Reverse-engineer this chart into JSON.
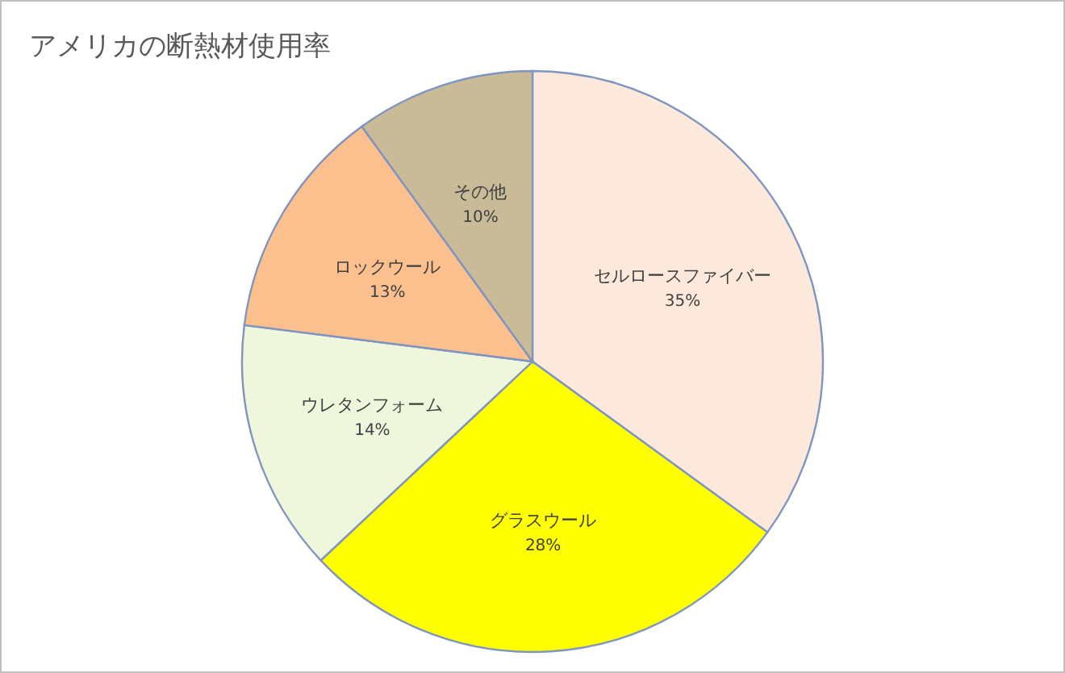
{
  "chart_data": {
    "type": "pie",
    "title": "アメリカの断熱材使用率",
    "categories": [
      "セルロースファイバー",
      "グラスウール",
      "ウレタンフォーム",
      "ロックウール",
      "その他"
    ],
    "values": [
      35,
      28,
      14,
      13,
      10
    ],
    "colors": [
      "#fde9dc",
      "#ffff00",
      "#eef7dc",
      "#fcbf8e",
      "#c9bb98"
    ],
    "value_labels": [
      "35%",
      "28%",
      "14%",
      "13%",
      "10%"
    ]
  }
}
